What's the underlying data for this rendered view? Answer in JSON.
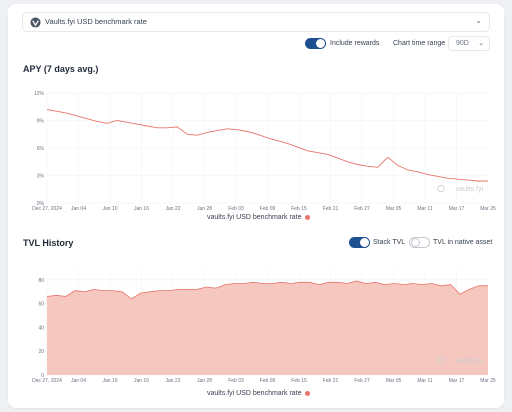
{
  "selector": {
    "label": "Vaults.fyi USD benchmark rate"
  },
  "controls": {
    "include_rewards_label": "Include rewards",
    "include_rewards_on": true,
    "chart_time_range_label": "Chart time range",
    "time_range_value": "90D"
  },
  "apy": {
    "title": "APY (7 days avg.)",
    "watermark": "vaults.fyi",
    "legend": "vaults.fyi USD benchmark rate"
  },
  "tvl": {
    "title": "TVL History",
    "stack_tvl_label": "Stack TVL",
    "stack_tvl_on": true,
    "native_asset_label": "TVL in native asset",
    "native_asset_on": false,
    "watermark": "vaults.fyi",
    "legend": "vaults.fyi USD benchmark rate"
  },
  "colors": {
    "line": "#e8756a",
    "area_fill": "#f6c7bf",
    "area_stroke": "#e8756a",
    "toggle_on": "#1e4f91"
  },
  "chart_data": [
    {
      "type": "line",
      "title": "APY (7 days avg.)",
      "y_ticks": [
        "12%",
        "9%",
        "6%",
        "3%",
        "0%"
      ],
      "ylim": [
        0,
        12
      ],
      "x_tick_labels": [
        "Dec 27, 2024",
        "Jan 04",
        "Jan 10",
        "Jan 16",
        "Jan 22",
        "Jan 28",
        "Feb 03",
        "Feb 09",
        "Feb 15",
        "Feb 21",
        "Feb 27",
        "Mar 05",
        "Mar 11",
        "Mar 17",
        "Mar 25"
      ],
      "grid": true,
      "legend_position": "bottom",
      "series": [
        {
          "name": "vaults.fyi USD benchmark rate",
          "values": [
            10.2,
            10.0,
            9.8,
            9.5,
            9.2,
            8.9,
            8.7,
            9.0,
            8.8,
            8.6,
            8.4,
            8.2,
            8.2,
            8.3,
            7.5,
            7.4,
            7.7,
            7.9,
            8.1,
            8.0,
            7.8,
            7.5,
            7.1,
            6.8,
            6.5,
            6.1,
            5.7,
            5.5,
            5.3,
            4.9,
            4.5,
            4.2,
            4.0,
            3.9,
            5.0,
            4.1,
            3.6,
            3.4,
            3.1,
            2.9,
            2.7,
            2.6,
            2.5,
            2.4,
            2.4
          ]
        }
      ]
    },
    {
      "type": "area",
      "title": "TVL History",
      "y_ticks": [
        "80",
        "60",
        "40",
        "20",
        "0"
      ],
      "ylim": [
        0,
        90
      ],
      "x_tick_labels": [
        "Dec 27, 2024",
        "Jan 04",
        "Jan 10",
        "Jan 16",
        "Jan 22",
        "Jan 28",
        "Feb 03",
        "Feb 09",
        "Feb 15",
        "Feb 21",
        "Feb 27",
        "Mar 05",
        "Mar 11",
        "Mar 17",
        "Mar 25"
      ],
      "grid": true,
      "legend_position": "bottom",
      "series": [
        {
          "name": "vaults.fyi USD benchmark rate",
          "values": [
            66,
            67,
            66,
            71,
            70,
            72,
            71,
            71,
            70,
            64,
            69,
            70,
            71,
            71,
            72,
            72,
            72,
            74,
            73,
            76,
            77,
            77,
            78,
            77,
            77,
            78,
            77,
            78,
            78,
            76,
            78,
            78,
            77,
            79,
            77,
            78,
            76,
            77,
            76,
            77,
            76,
            77,
            75,
            76,
            68,
            72,
            75,
            75
          ]
        }
      ]
    }
  ]
}
